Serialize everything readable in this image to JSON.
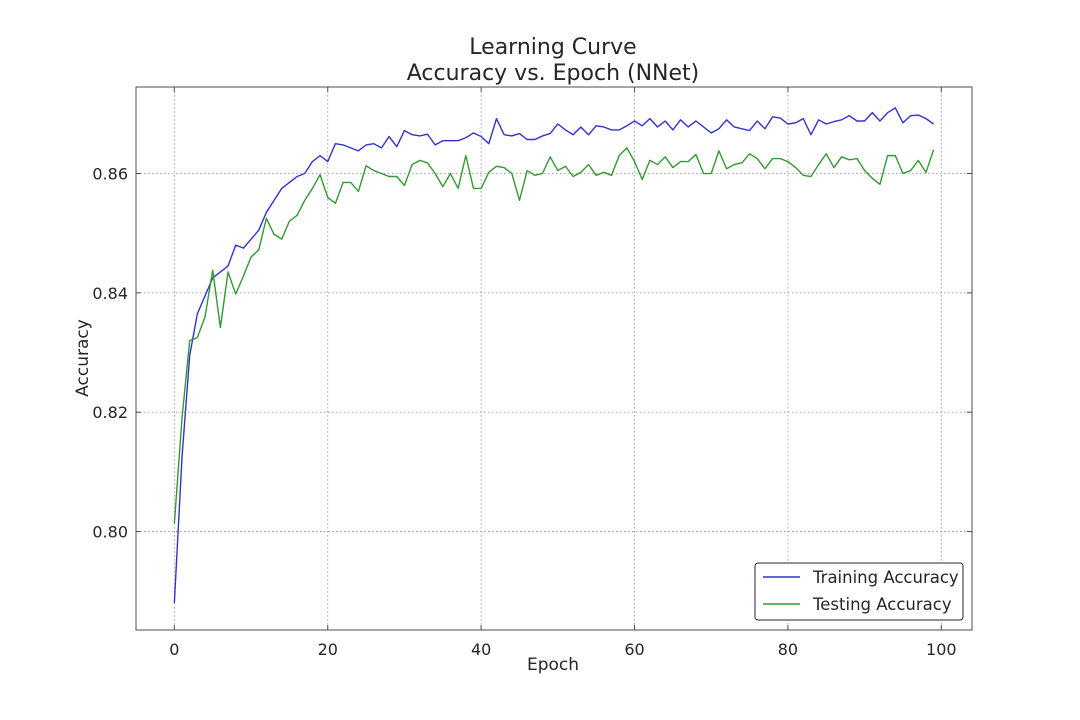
{
  "chart_data": {
    "type": "line",
    "title": "Learning Curve",
    "subtitle": "Accuracy vs. Epoch (NNet)",
    "xlabel": "Epoch",
    "ylabel": "Accuracy",
    "xlim": [
      -5,
      104
    ],
    "ylim": [
      0.7835,
      0.8745
    ],
    "xticks": [
      0,
      20,
      40,
      60,
      80,
      100
    ],
    "yticks": [
      0.8,
      0.82,
      0.84,
      0.86
    ],
    "xtick_labels": [
      "0",
      "20",
      "40",
      "60",
      "80",
      "100"
    ],
    "ytick_labels": [
      "0.80",
      "0.82",
      "0.84",
      "0.86"
    ],
    "grid": true,
    "legend_position": "bottom-right",
    "x": [
      0,
      1,
      2,
      3,
      4,
      5,
      6,
      7,
      8,
      9,
      10,
      11,
      12,
      13,
      14,
      15,
      16,
      17,
      18,
      19,
      20,
      21,
      22,
      23,
      24,
      25,
      26,
      27,
      28,
      29,
      30,
      31,
      32,
      33,
      34,
      35,
      36,
      37,
      38,
      39,
      40,
      41,
      42,
      43,
      44,
      45,
      46,
      47,
      48,
      49,
      50,
      51,
      52,
      53,
      54,
      55,
      56,
      57,
      58,
      59,
      60,
      61,
      62,
      63,
      64,
      65,
      66,
      67,
      68,
      69,
      70,
      71,
      72,
      73,
      74,
      75,
      76,
      77,
      78,
      79,
      80,
      81,
      82,
      83,
      84,
      85,
      86,
      87,
      88,
      89,
      90,
      91,
      92,
      93,
      94,
      95,
      96,
      97,
      98,
      99
    ],
    "series": [
      {
        "name": "Training Accuracy",
        "color": "#3333cc",
        "values": [
          0.788,
          0.8125,
          0.8295,
          0.8365,
          0.8395,
          0.8425,
          0.8435,
          0.8445,
          0.848,
          0.8475,
          0.849,
          0.8505,
          0.8535,
          0.8555,
          0.8575,
          0.8585,
          0.8595,
          0.86,
          0.862,
          0.863,
          0.862,
          0.865,
          0.8648,
          0.8643,
          0.8638,
          0.8648,
          0.865,
          0.8643,
          0.8662,
          0.8645,
          0.8672,
          0.8665,
          0.8663,
          0.8666,
          0.8648,
          0.8655,
          0.8655,
          0.8655,
          0.866,
          0.8668,
          0.8662,
          0.865,
          0.8692,
          0.8665,
          0.8663,
          0.8667,
          0.8657,
          0.8657,
          0.8663,
          0.8667,
          0.8683,
          0.8673,
          0.8665,
          0.8678,
          0.8665,
          0.868,
          0.8678,
          0.8673,
          0.8673,
          0.868,
          0.8688,
          0.868,
          0.8692,
          0.8678,
          0.8688,
          0.8673,
          0.869,
          0.8678,
          0.8688,
          0.8678,
          0.8668,
          0.8675,
          0.869,
          0.8678,
          0.8675,
          0.8672,
          0.8688,
          0.8675,
          0.8695,
          0.8693,
          0.8683,
          0.8685,
          0.8692,
          0.8665,
          0.869,
          0.8683,
          0.8687,
          0.869,
          0.8697,
          0.8688,
          0.8688,
          0.8702,
          0.8688,
          0.8702,
          0.871,
          0.8685,
          0.8697,
          0.8698,
          0.8692,
          0.8683
        ]
      },
      {
        "name": "Testing Accuracy",
        "color": "#339933",
        "values": [
          0.8013,
          0.819,
          0.832,
          0.8325,
          0.836,
          0.8438,
          0.8342,
          0.8435,
          0.8398,
          0.8428,
          0.846,
          0.8472,
          0.8525,
          0.8498,
          0.849,
          0.852,
          0.853,
          0.8555,
          0.8575,
          0.8598,
          0.856,
          0.855,
          0.8585,
          0.8585,
          0.857,
          0.8613,
          0.8605,
          0.86,
          0.8595,
          0.8595,
          0.858,
          0.8615,
          0.8622,
          0.8618,
          0.86,
          0.8578,
          0.86,
          0.8575,
          0.863,
          0.8575,
          0.8575,
          0.8602,
          0.8612,
          0.861,
          0.86,
          0.8555,
          0.8605,
          0.8597,
          0.86,
          0.8628,
          0.8605,
          0.8612,
          0.8595,
          0.8602,
          0.8615,
          0.8597,
          0.8602,
          0.8597,
          0.863,
          0.8643,
          0.862,
          0.859,
          0.8622,
          0.8615,
          0.8628,
          0.861,
          0.862,
          0.862,
          0.8632,
          0.86,
          0.86,
          0.8638,
          0.8608,
          0.8615,
          0.8618,
          0.8633,
          0.8625,
          0.8608,
          0.8625,
          0.8625,
          0.862,
          0.861,
          0.8597,
          0.8595,
          0.8615,
          0.8633,
          0.861,
          0.8628,
          0.8623,
          0.8625,
          0.8605,
          0.8592,
          0.8582,
          0.863,
          0.863,
          0.86,
          0.8605,
          0.8622,
          0.8602,
          0.864
        ]
      }
    ]
  }
}
